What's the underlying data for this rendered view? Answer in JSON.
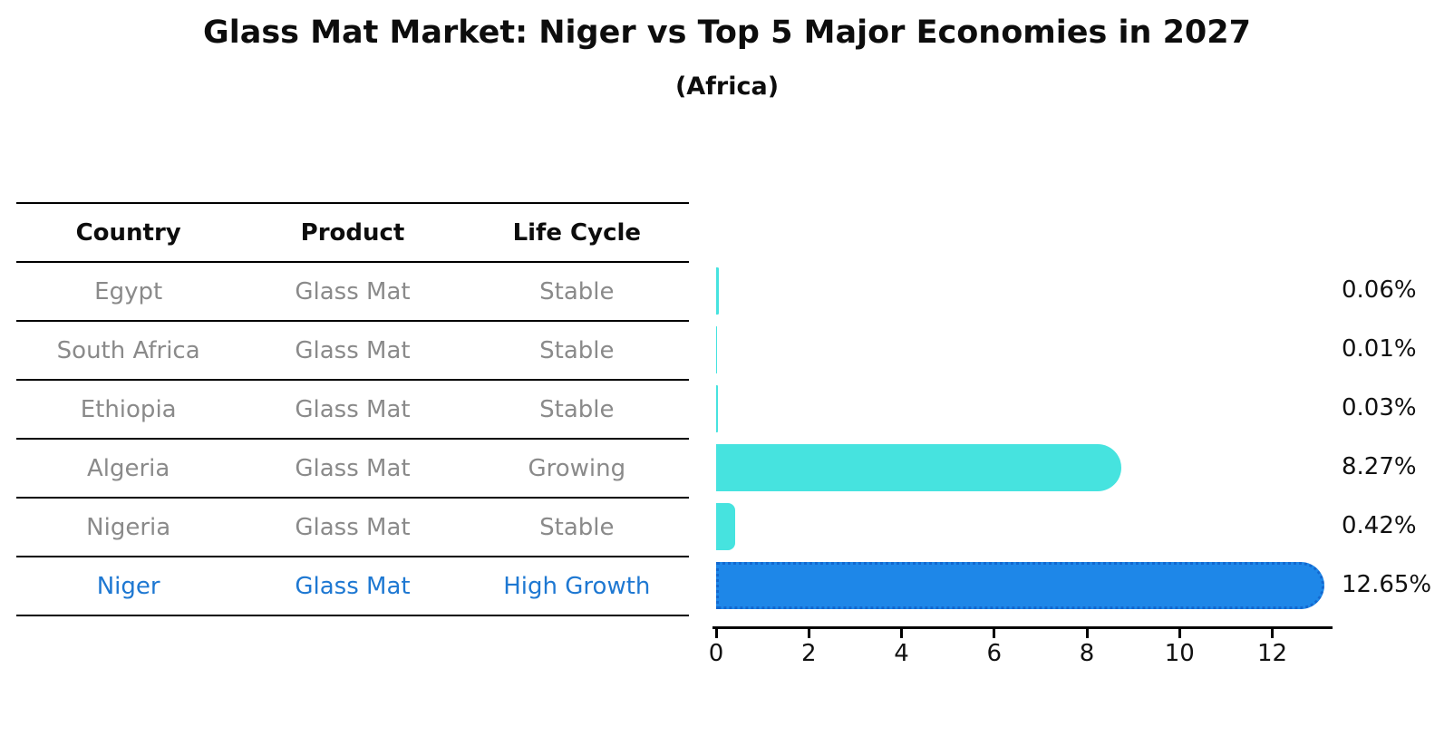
{
  "title": "Glass Mat Market: Niger vs Top 5 Major Economies in 2027",
  "subtitle": "(Africa)",
  "table": {
    "headers": [
      "Country",
      "Product",
      "Life Cycle"
    ],
    "rows": [
      {
        "country": "Egypt",
        "product": "Glass Mat",
        "life_cycle": "Stable",
        "highlight": false
      },
      {
        "country": "South Africa",
        "product": "Glass Mat",
        "life_cycle": "Stable",
        "highlight": false
      },
      {
        "country": "Ethiopia",
        "product": "Glass Mat",
        "life_cycle": "Stable",
        "highlight": false
      },
      {
        "country": "Algeria",
        "product": "Glass Mat",
        "life_cycle": "Growing",
        "highlight": false
      },
      {
        "country": "Nigeria",
        "product": "Glass Mat",
        "life_cycle": "Stable",
        "highlight": false
      },
      {
        "country": "Niger",
        "product": "Glass Mat",
        "life_cycle": "High Growth",
        "highlight": true
      }
    ]
  },
  "chart_data": {
    "type": "bar",
    "orientation": "horizontal",
    "title": "Glass Mat Market: Niger vs Top 5 Major Economies in 2027",
    "subtitle": "(Africa)",
    "categories": [
      "Egypt",
      "South Africa",
      "Ethiopia",
      "Algeria",
      "Nigeria",
      "Niger"
    ],
    "values": [
      0.06,
      0.01,
      0.03,
      8.27,
      0.42,
      12.65
    ],
    "value_labels": [
      "0.06%",
      "0.01%",
      "0.03%",
      "8.27%",
      "0.42%",
      "12.65%"
    ],
    "xlabel": "",
    "ylabel": "",
    "xticks": [
      0,
      2,
      4,
      6,
      8,
      10,
      12
    ],
    "xlim": [
      0,
      13.3
    ],
    "grid": false,
    "legend_position": "none",
    "highlight_index": 5,
    "colors": {
      "bar_default": "#46e3df",
      "bar_highlight": "#1e87e8",
      "bar_highlight_edge": "#1368cf",
      "highlight_text": "#1e78d2",
      "table_text": "#8a8a8a",
      "axis": "#000000",
      "value_text": "#111111"
    }
  }
}
